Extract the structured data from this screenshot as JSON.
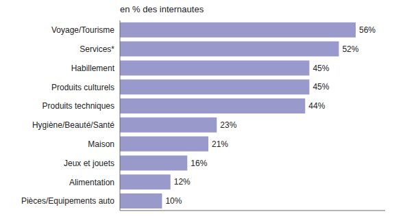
{
  "chart_data": {
    "type": "bar",
    "orientation": "horizontal",
    "title": "en % des internautes",
    "categories": [
      "Pièces/Equipements auto",
      "Alimentation",
      "Jeux et jouets",
      "Maison",
      "Hygiène/Beauté/Santé",
      "Produits techniques",
      "Produits culturels",
      "Habillement",
      "Services*",
      "Voyage/Tourisme"
    ],
    "values": [
      10,
      12,
      16,
      21,
      23,
      44,
      45,
      45,
      52,
      56
    ],
    "value_labels": [
      "10%",
      "12%",
      "16%",
      "21%",
      "23%",
      "44%",
      "45%",
      "45%",
      "52%",
      "56%"
    ],
    "color": "#9999cc",
    "xlim": [
      0,
      63
    ],
    "data_labels": true,
    "tick_labels": "y",
    "grid": false
  }
}
